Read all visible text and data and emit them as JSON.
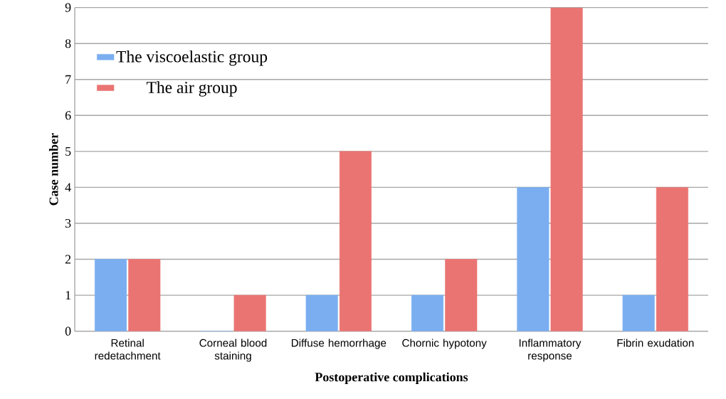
{
  "chart_data": {
    "type": "bar",
    "categories": [
      "Retinal redetachment",
      "Corneal blood staining",
      "Diffuse hemorrhage",
      "Chornic hypotony",
      "Inflammatory response",
      "Fibrin exudation"
    ],
    "series": [
      {
        "name": "The viscoelastic group",
        "color": "#7aaef0",
        "values": [
          2,
          0,
          1,
          1,
          4,
          1
        ]
      },
      {
        "name": "The air group",
        "color": "#ea7472",
        "values": [
          2,
          1,
          5,
          2,
          9,
          4
        ]
      }
    ],
    "xlabel": "Postoperative complications",
    "ylabel": "Case number",
    "ylim": [
      0,
      9
    ],
    "yticks": [
      0,
      1,
      2,
      3,
      4,
      5,
      6,
      7,
      8,
      9
    ],
    "grid": "y",
    "legend": "top left"
  }
}
